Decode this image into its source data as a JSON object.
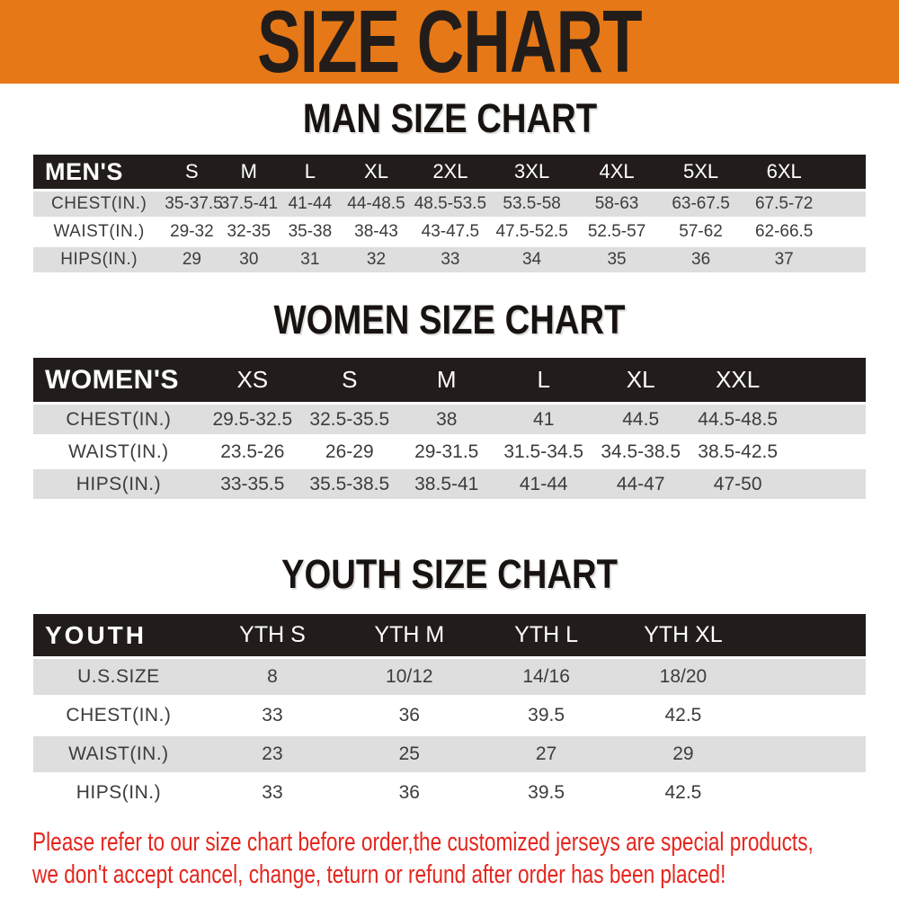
{
  "banner": {
    "title": "SIZE CHART"
  },
  "chart_data": [
    {
      "type": "table",
      "title": "MAN SIZE CHART",
      "corner_label": "MEN'S",
      "columns": [
        "S",
        "M",
        "L",
        "XL",
        "2XL",
        "3XL",
        "4XL",
        "5XL",
        "6XL"
      ],
      "rows": [
        {
          "label": "CHEST(IN.)",
          "values": [
            "35-37.5",
            "37.5-41",
            "41-44",
            "44-48.5",
            "48.5-53.5",
            "53.5-58",
            "58-63",
            "63-67.5",
            "67.5-72"
          ]
        },
        {
          "label": "WAIST(IN.)",
          "values": [
            "29-32",
            "32-35",
            "35-38",
            "38-43",
            "43-47.5",
            "47.5-52.5",
            "52.5-57",
            "57-62",
            "62-66.5"
          ]
        },
        {
          "label": "HIPS(IN.)",
          "values": [
            "29",
            "30",
            "31",
            "32",
            "33",
            "34",
            "35",
            "36",
            "37"
          ]
        }
      ]
    },
    {
      "type": "table",
      "title": "WOMEN SIZE CHART",
      "corner_label": "WOMEN'S",
      "columns": [
        "XS",
        "S",
        "M",
        "L",
        "XL",
        "XXL"
      ],
      "rows": [
        {
          "label": "CHEST(IN.)",
          "values": [
            "29.5-32.5",
            "32.5-35.5",
            "38",
            "41",
            "44.5",
            "44.5-48.5"
          ]
        },
        {
          "label": "WAIST(IN.)",
          "values": [
            "23.5-26",
            "26-29",
            "29-31.5",
            "31.5-34.5",
            "34.5-38.5",
            "38.5-42.5"
          ]
        },
        {
          "label": "HIPS(IN.)",
          "values": [
            "33-35.5",
            "35.5-38.5",
            "38.5-41",
            "41-44",
            "44-47",
            "47-50"
          ]
        }
      ]
    },
    {
      "type": "table",
      "title": "YOUTH SIZE CHART",
      "corner_label": "YOUTH",
      "columns": [
        "YTH S",
        "YTH M",
        "YTH L",
        "YTH XL"
      ],
      "rows": [
        {
          "label": "U.S.SIZE",
          "values": [
            "8",
            "10/12",
            "14/16",
            "18/20"
          ]
        },
        {
          "label": "CHEST(IN.)",
          "values": [
            "33",
            "36",
            "39.5",
            "42.5"
          ]
        },
        {
          "label": "WAIST(IN.)",
          "values": [
            "23",
            "25",
            "27",
            "29"
          ]
        },
        {
          "label": "HIPS(IN.)",
          "values": [
            "33",
            "36",
            "39.5",
            "42.5"
          ]
        }
      ]
    }
  ],
  "disclaimer": {
    "line1": "Please refer to our size chart before order,the customized jerseys are special products,",
    "line2": "we don't accept cancel, change, teturn or refund after order has been placed!"
  },
  "colors": {
    "banner_orange": "#E67817",
    "header_black": "#221D1A",
    "row_gray": "#DEDEDE",
    "text_dark": "#3C3C3C",
    "disclaimer_red": "#E5251D"
  }
}
